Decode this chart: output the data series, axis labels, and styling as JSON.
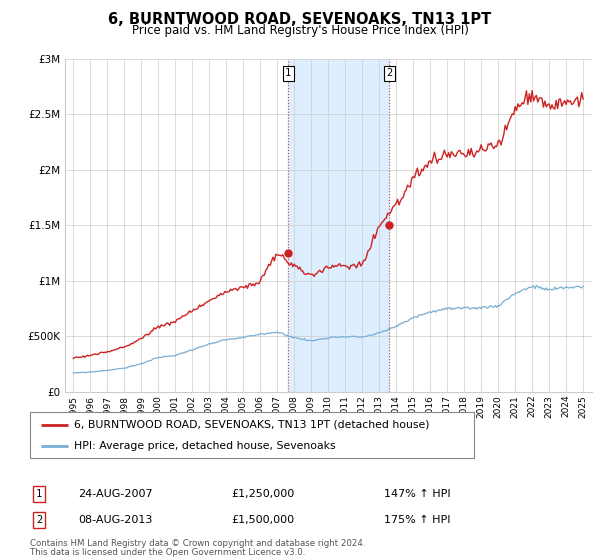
{
  "title": "6, BURNTWOOD ROAD, SEVENOAKS, TN13 1PT",
  "subtitle": "Price paid vs. HM Land Registry's House Price Index (HPI)",
  "legend_line1": "6, BURNTWOOD ROAD, SEVENOAKS, TN13 1PT (detached house)",
  "legend_line2": "HPI: Average price, detached house, Sevenoaks",
  "footnote_line1": "Contains HM Land Registry data © Crown copyright and database right 2024.",
  "footnote_line2": "This data is licensed under the Open Government Licence v3.0.",
  "sale1_label": "1",
  "sale1_date": "24-AUG-2007",
  "sale1_price": "£1,250,000",
  "sale1_hpi": "147% ↑ HPI",
  "sale2_label": "2",
  "sale2_date": "08-AUG-2013",
  "sale2_price": "£1,500,000",
  "sale2_hpi": "175% ↑ HPI",
  "hpi_color": "#7aaed4",
  "price_color": "#cc2222",
  "shade_color": "#ddeeff",
  "ylim": [
    0,
    3000000
  ],
  "yticks": [
    0,
    500000,
    1000000,
    1500000,
    2000000,
    2500000,
    3000000
  ],
  "ylabels": [
    "£0",
    "£500K",
    "£1M",
    "£1.5M",
    "£2M",
    "£2.5M",
    "£3M"
  ],
  "sale1_year": 2007.65,
  "sale1_value": 1250000,
  "sale2_year": 2013.6,
  "sale2_value": 1500000,
  "xmin": 1994.5,
  "xmax": 2025.5
}
